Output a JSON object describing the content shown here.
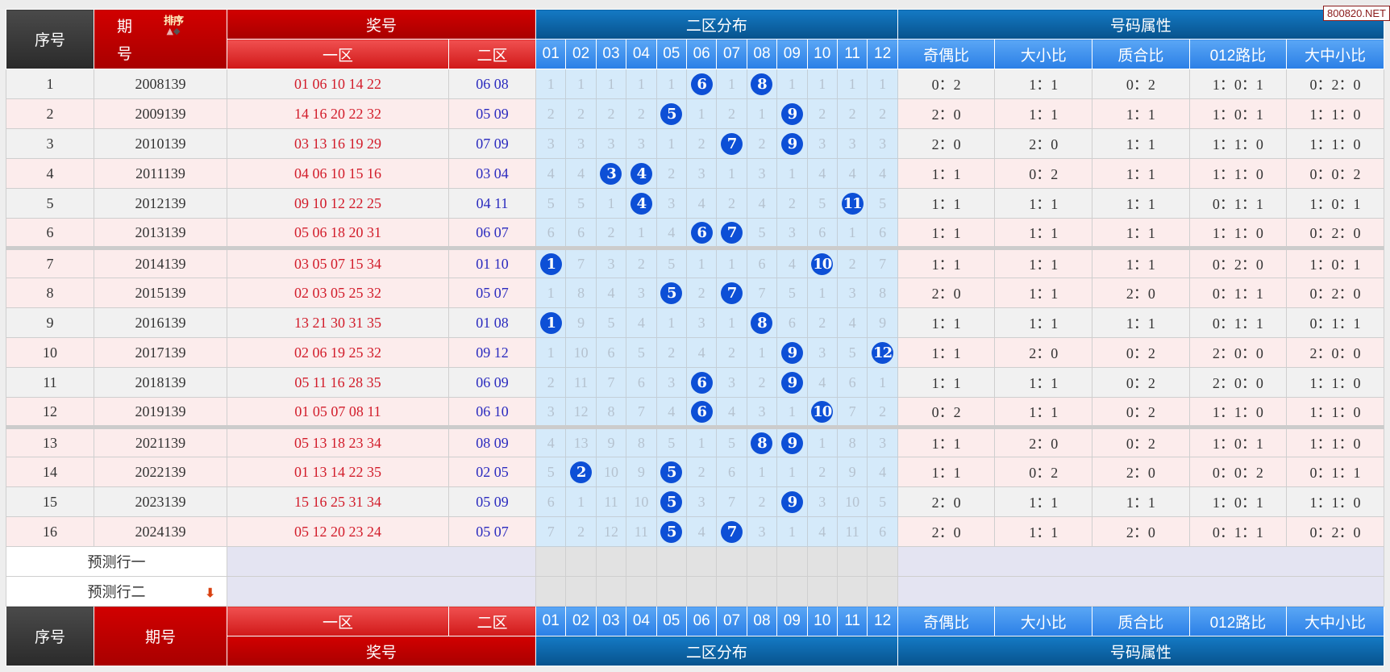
{
  "watermark": "800820.NET",
  "header": {
    "seq": "序号",
    "period_a": "期",
    "period_b": "号",
    "period": "期号",
    "sort_label": "排序",
    "sort_icons": [
      "arrow-up-icon",
      "diamond-icon"
    ],
    "prize": "奖号",
    "zone1": "一区",
    "zone2": "二区",
    "dist": "二区分布",
    "attr": "号码属性",
    "cols": [
      "01",
      "02",
      "03",
      "04",
      "05",
      "06",
      "07",
      "08",
      "09",
      "10",
      "11",
      "12"
    ],
    "attrs": [
      "奇偶比",
      "大小比",
      "质合比",
      "012路比",
      "大中小比"
    ]
  },
  "colors": {
    "ball": "#0d4fd6",
    "zone1_text": "#d21c2a",
    "zone2_text": "#2b2bbf",
    "header_red": "#c00000",
    "header_blue": "#1479c4"
  },
  "rows": [
    {
      "seq": "1",
      "period": "2008139",
      "zone1": "01 06 10 14 22",
      "zone2": "06 08",
      "grid": [
        1,
        1,
        1,
        1,
        1,
        6,
        1,
        8,
        1,
        1,
        1,
        1
      ],
      "attrs": [
        "0：2",
        "1：1",
        "0：2",
        "1：0：1",
        "0：2：0"
      ]
    },
    {
      "seq": "2",
      "period": "2009139",
      "zone1": "14 16 20 22 32",
      "zone2": "05 09",
      "grid": [
        2,
        2,
        2,
        2,
        5,
        1,
        2,
        1,
        9,
        2,
        2,
        2
      ],
      "attrs": [
        "2：0",
        "1：1",
        "1：1",
        "1：0：1",
        "1：1：0"
      ]
    },
    {
      "seq": "3",
      "period": "2010139",
      "zone1": "03 13 16 19 29",
      "zone2": "07 09",
      "grid": [
        3,
        3,
        3,
        3,
        1,
        2,
        7,
        2,
        9,
        3,
        3,
        3
      ],
      "attrs": [
        "2：0",
        "2：0",
        "1：1",
        "1：1：0",
        "1：1：0"
      ]
    },
    {
      "seq": "4",
      "period": "2011139",
      "zone1": "04 06 10 15 16",
      "zone2": "03 04",
      "grid": [
        4,
        4,
        3,
        4,
        2,
        3,
        1,
        3,
        1,
        4,
        4,
        4
      ],
      "attrs": [
        "1：1",
        "0：2",
        "1：1",
        "1：1：0",
        "0：0：2"
      ]
    },
    {
      "seq": "5",
      "period": "2012139",
      "zone1": "09 10 12 22 25",
      "zone2": "04 11",
      "grid": [
        5,
        5,
        1,
        4,
        3,
        4,
        2,
        4,
        2,
        5,
        11,
        5
      ],
      "attrs": [
        "1：1",
        "1：1",
        "1：1",
        "0：1：1",
        "1：0：1"
      ]
    },
    {
      "seq": "6",
      "period": "2013139",
      "zone1": "05 06 18 20 31",
      "zone2": "06 07",
      "grid": [
        6,
        6,
        2,
        1,
        4,
        6,
        7,
        5,
        3,
        6,
        1,
        6
      ],
      "attrs": [
        "1：1",
        "1：1",
        "1：1",
        "1：1：0",
        "0：2：0"
      ]
    },
    {
      "seq": "7",
      "period": "2014139",
      "zone1": "03 05 07 15 34",
      "zone2": "01 10",
      "grid": [
        1,
        7,
        3,
        2,
        5,
        1,
        1,
        6,
        4,
        10,
        2,
        7
      ],
      "attrs": [
        "1：1",
        "1：1",
        "1：1",
        "0：2：0",
        "1：0：1"
      ]
    },
    {
      "seq": "8",
      "period": "2015139",
      "zone1": "02 03 05 25 32",
      "zone2": "05 07",
      "grid": [
        1,
        8,
        4,
        3,
        5,
        2,
        7,
        7,
        5,
        1,
        3,
        8
      ],
      "attrs": [
        "2：0",
        "1：1",
        "2：0",
        "0：1：1",
        "0：2：0"
      ]
    },
    {
      "seq": "9",
      "period": "2016139",
      "zone1": "13 21 30 31 35",
      "zone2": "01 08",
      "grid": [
        1,
        9,
        5,
        4,
        1,
        3,
        1,
        8,
        6,
        2,
        4,
        9
      ],
      "attrs": [
        "1：1",
        "1：1",
        "1：1",
        "0：1：1",
        "0：1：1"
      ]
    },
    {
      "seq": "10",
      "period": "2017139",
      "zone1": "02 06 19 25 32",
      "zone2": "09 12",
      "grid": [
        1,
        10,
        6,
        5,
        2,
        4,
        2,
        1,
        9,
        3,
        5,
        12
      ],
      "attrs": [
        "1：1",
        "2：0",
        "0：2",
        "2：0：0",
        "2：0：0"
      ]
    },
    {
      "seq": "11",
      "period": "2018139",
      "zone1": "05 11 16 28 35",
      "zone2": "06 09",
      "grid": [
        2,
        11,
        7,
        6,
        3,
        6,
        3,
        2,
        9,
        4,
        6,
        1
      ],
      "attrs": [
        "1：1",
        "1：1",
        "0：2",
        "2：0：0",
        "1：1：0"
      ]
    },
    {
      "seq": "12",
      "period": "2019139",
      "zone1": "01 05 07 08 11",
      "zone2": "06 10",
      "grid": [
        3,
        12,
        8,
        7,
        4,
        6,
        4,
        3,
        1,
        10,
        7,
        2
      ],
      "attrs": [
        "0：2",
        "1：1",
        "0：2",
        "1：1：0",
        "1：1：0"
      ]
    },
    {
      "seq": "13",
      "period": "2021139",
      "zone1": "05 13 18 23 34",
      "zone2": "08 09",
      "grid": [
        4,
        13,
        9,
        8,
        5,
        1,
        5,
        8,
        9,
        1,
        8,
        3
      ],
      "attrs": [
        "1：1",
        "2：0",
        "0：2",
        "1：0：1",
        "1：1：0"
      ]
    },
    {
      "seq": "14",
      "period": "2022139",
      "zone1": "01 13 14 22 35",
      "zone2": "02 05",
      "grid": [
        5,
        2,
        10,
        9,
        5,
        2,
        6,
        1,
        1,
        2,
        9,
        4
      ],
      "attrs": [
        "1：1",
        "0：2",
        "2：0",
        "0：0：2",
        "0：1：1"
      ]
    },
    {
      "seq": "15",
      "period": "2023139",
      "zone1": "15 16 25 31 34",
      "zone2": "05 09",
      "grid": [
        6,
        1,
        11,
        10,
        5,
        3,
        7,
        2,
        9,
        3,
        10,
        5
      ],
      "attrs": [
        "2：0",
        "1：1",
        "1：1",
        "1：0：1",
        "1：1：0"
      ]
    },
    {
      "seq": "16",
      "period": "2024139",
      "zone1": "05 12 20 23 24",
      "zone2": "05 07",
      "grid": [
        7,
        2,
        12,
        11,
        5,
        4,
        7,
        3,
        1,
        4,
        11,
        6
      ],
      "attrs": [
        "2：0",
        "1：1",
        "2：0",
        "0：1：1",
        "0：2：0"
      ]
    }
  ],
  "predict": {
    "row1": "预测行一",
    "row2": "预测行二"
  }
}
